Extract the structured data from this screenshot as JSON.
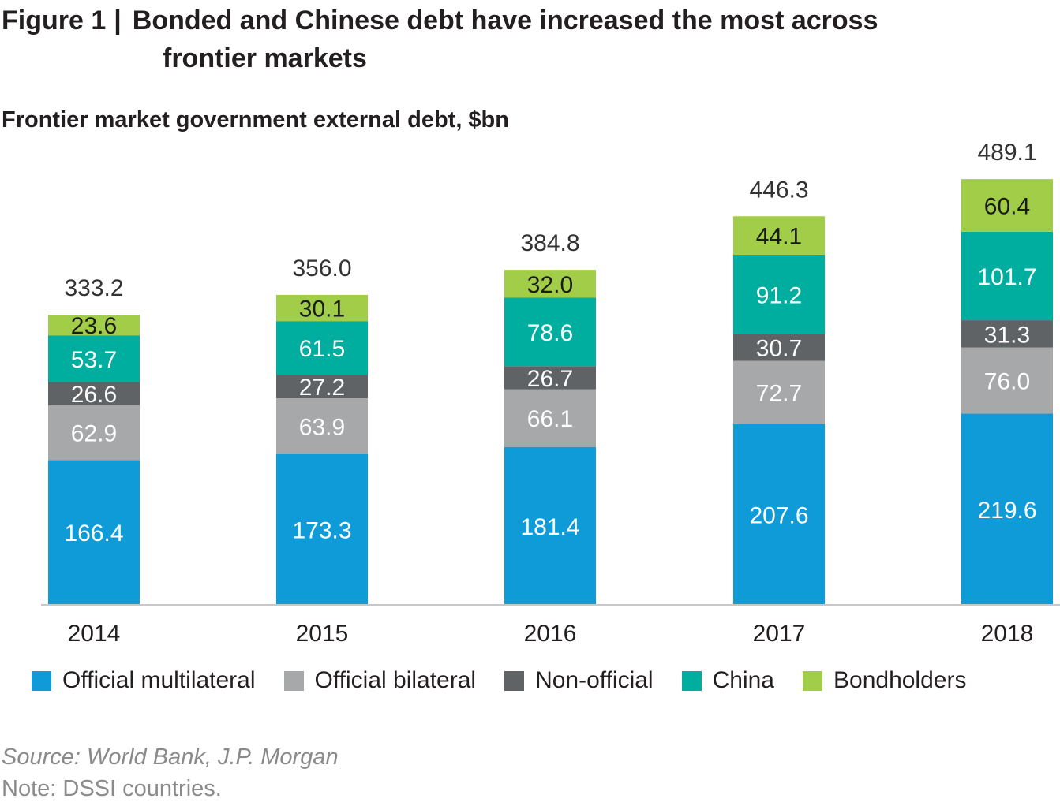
{
  "title": {
    "figure": "Figure 1",
    "separator": "|",
    "line1": "Bonded and Chinese debt have increased the most across",
    "line2": "frontier markets"
  },
  "subtitle": "Frontier market government external debt, $bn",
  "source": "Source: World Bank, J.P. Morgan",
  "note": "Note: DSSI countries.",
  "chart_data": {
    "type": "bar",
    "stacked": true,
    "title": "Frontier market government external debt, $bn",
    "categories": [
      "2014",
      "2015",
      "2016",
      "2017",
      "2018"
    ],
    "series": [
      {
        "name": "Official multilateral",
        "color": "#0e9bd8",
        "values": [
          166.4,
          173.3,
          181.4,
          207.6,
          219.6
        ]
      },
      {
        "name": "Official bilateral",
        "color": "#a7a8aa",
        "values": [
          62.9,
          63.9,
          66.1,
          72.7,
          76.0
        ]
      },
      {
        "name": "Non-official",
        "color": "#5f6366",
        "values": [
          26.6,
          27.2,
          26.7,
          30.7,
          31.3
        ]
      },
      {
        "name": "China",
        "color": "#00aea0",
        "values": [
          53.7,
          61.5,
          78.6,
          91.2,
          101.7
        ]
      },
      {
        "name": "Bondholders",
        "color": "#a2cd48",
        "values": [
          23.6,
          30.1,
          32.0,
          44.1,
          60.4
        ]
      }
    ],
    "totals": [
      "333.2",
      "356.0",
      "384.8",
      "446.3",
      "489.1"
    ],
    "labels": [
      [
        "166.4",
        "173.3",
        "181.4",
        "207.6",
        "219.6"
      ],
      [
        "62.9",
        "63.9",
        "66.1",
        "72.7",
        "76.0"
      ],
      [
        "26.6",
        "27.2",
        "26.7",
        "30.7",
        "31.3"
      ],
      [
        "53.7",
        "61.5",
        "78.6",
        "91.2",
        "101.7"
      ],
      [
        "23.6",
        "30.1",
        "32.0",
        "44.1",
        "60.4"
      ]
    ],
    "ylim": [
      0,
      489.1
    ],
    "grid": false,
    "legend": "bottom"
  }
}
